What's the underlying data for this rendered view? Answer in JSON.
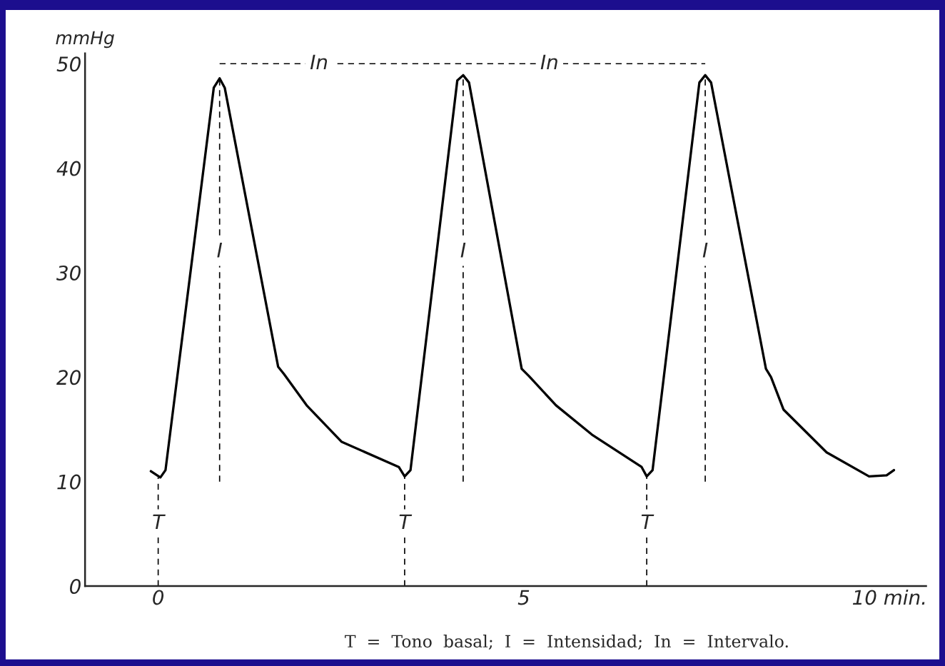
{
  "chart_data": {
    "type": "line",
    "ylabel": "mmHg",
    "xlim": [
      -1,
      10.5
    ],
    "ylim": [
      0,
      51
    ],
    "xticks": [
      0,
      5,
      {
        "value": 10,
        "label": "10 min."
      }
    ],
    "yticks": [
      0,
      10,
      20,
      30,
      40,
      50
    ],
    "grid": false,
    "series": [
      {
        "color": "#000000",
        "line_style": "solid",
        "x": [
          -0.1,
          0.03,
          0.1,
          0.76,
          0.84,
          0.91,
          1.64,
          1.72,
          2.03,
          2.51,
          3.29,
          3.37,
          3.45,
          4.09,
          4.17,
          4.25,
          4.97,
          5.07,
          5.44,
          5.93,
          6.61,
          6.68,
          6.76,
          7.4,
          7.48,
          7.56,
          8.31,
          8.38,
          8.55,
          9.14,
          9.72,
          9.96,
          10.06
        ],
        "values": [
          11,
          10.4,
          11.1,
          47.7,
          48.6,
          47.7,
          21,
          20.3,
          17.3,
          13.8,
          11.4,
          10.5,
          11.1,
          48.4,
          48.9,
          48.2,
          20.8,
          20.1,
          17.3,
          14.5,
          11.4,
          10.5,
          11.1,
          48.2,
          48.9,
          48.2,
          20.8,
          20,
          16.9,
          12.8,
          10.5,
          10.6,
          11.1
        ]
      },
      {
        "color": "#000000",
        "line_style": "dashed",
        "x": [
          0,
          0
        ],
        "values": [
          0,
          10.4
        ]
      },
      {
        "color": "#000000",
        "line_style": "dashed",
        "x": [
          3.37,
          3.37
        ],
        "values": [
          0,
          10.5
        ]
      },
      {
        "color": "#000000",
        "line_style": "dashed",
        "x": [
          6.68,
          6.68
        ],
        "values": [
          0,
          10.5
        ]
      },
      {
        "color": "#000000",
        "line_style": "dashed",
        "x": [
          0.84,
          0.84
        ],
        "values": [
          10,
          48.6
        ]
      },
      {
        "color": "#000000",
        "line_style": "dashed",
        "x": [
          4.17,
          4.17
        ],
        "values": [
          10,
          48.9
        ]
      },
      {
        "color": "#000000",
        "line_style": "dashed",
        "x": [
          7.48,
          7.48
        ],
        "values": [
          10,
          48.9
        ]
      },
      {
        "color": "#000000",
        "line_style": "dashed",
        "x": [
          0.84,
          4.17,
          7.48
        ],
        "values": [
          50,
          50,
          50
        ]
      }
    ],
    "annotations": [
      {
        "text": "T",
        "x": 0,
        "y": 6
      },
      {
        "text": "T",
        "x": 3.37,
        "y": 6
      },
      {
        "text": "T",
        "x": 6.68,
        "y": 6
      },
      {
        "text": "I",
        "x": 0.84,
        "y": 32
      },
      {
        "text": "I",
        "x": 4.17,
        "y": 32
      },
      {
        "text": "I",
        "x": 7.48,
        "y": 32
      },
      {
        "text": "In",
        "x": 2.2,
        "y": 50
      },
      {
        "text": "In",
        "x": 5.35,
        "y": 50
      },
      "T  =  Tono  basal;  I  =  Intensidad;  In  =  Intervalo."
    ]
  }
}
